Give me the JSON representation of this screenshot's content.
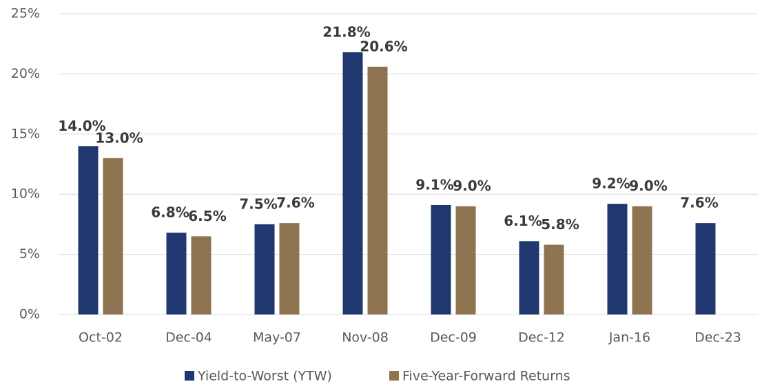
{
  "chart_data": {
    "type": "bar",
    "categories": [
      "Oct-02",
      "Dec-04",
      "May-07",
      "Nov-08",
      "Dec-09",
      "Dec-12",
      "Jan-16",
      "Dec-23"
    ],
    "series": [
      {
        "name": "Yield-to-Worst (YTW)",
        "color": "#20386f",
        "values": [
          14.0,
          6.8,
          7.5,
          21.8,
          9.1,
          6.1,
          9.2,
          7.6
        ],
        "value_labels": [
          "14.0%",
          "6.8%",
          "7.5%",
          "21.8%",
          "9.1%",
          "6.1%",
          "9.2%",
          "7.6%"
        ]
      },
      {
        "name": "Five-Year-Forward Returns",
        "color": "#8d7350",
        "values": [
          13.0,
          6.5,
          7.6,
          20.6,
          9.0,
          5.8,
          9.0,
          null
        ],
        "value_labels": [
          "13.0%",
          "6.5%",
          "7.6%",
          "20.6%",
          "9.0%",
          "5.8%",
          "9.0%",
          null
        ]
      }
    ],
    "ylim": [
      0,
      25
    ],
    "yticks": [
      {
        "value": 0,
        "label": "0%"
      },
      {
        "value": 5,
        "label": "5%"
      },
      {
        "value": 10,
        "label": "10%"
      },
      {
        "value": 15,
        "label": "15%"
      },
      {
        "value": 20,
        "label": "20%"
      },
      {
        "value": 25,
        "label": "25%"
      }
    ],
    "grid": true,
    "legend": "bottom"
  }
}
